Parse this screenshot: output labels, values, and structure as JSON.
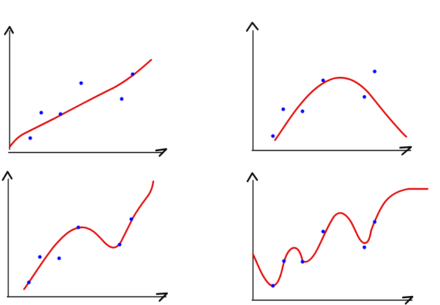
{
  "colors": {
    "axis": "#000000",
    "curve": "#e00000",
    "point": "#0000ff",
    "background": "#ffffff"
  },
  "panels": [
    {
      "name": "linear-fit",
      "points": [
        [
          0.14,
          0.09
        ],
        [
          0.21,
          0.32
        ],
        [
          0.34,
          0.29
        ],
        [
          0.5,
          0.57
        ],
        [
          0.77,
          0.43
        ],
        [
          0.84,
          0.75
        ]
      ]
    },
    {
      "name": "quadratic-fit",
      "points": [
        [
          0.12,
          0.13
        ],
        [
          0.19,
          0.39
        ],
        [
          0.31,
          0.37
        ],
        [
          0.43,
          0.69
        ],
        [
          0.71,
          0.51
        ],
        [
          0.8,
          0.77
        ]
      ]
    },
    {
      "name": "cubic-fit",
      "points": [
        [
          0.12,
          0.11
        ],
        [
          0.2,
          0.34
        ],
        [
          0.32,
          0.33
        ],
        [
          0.45,
          0.6
        ],
        [
          0.69,
          0.43
        ],
        [
          0.76,
          0.65
        ]
      ]
    },
    {
      "name": "overfit",
      "points": [
        [
          0.1,
          0.1
        ],
        [
          0.19,
          0.3
        ],
        [
          0.32,
          0.29
        ],
        [
          0.42,
          0.47
        ],
        [
          0.71,
          0.38
        ],
        [
          0.79,
          0.53
        ]
      ]
    }
  ]
}
